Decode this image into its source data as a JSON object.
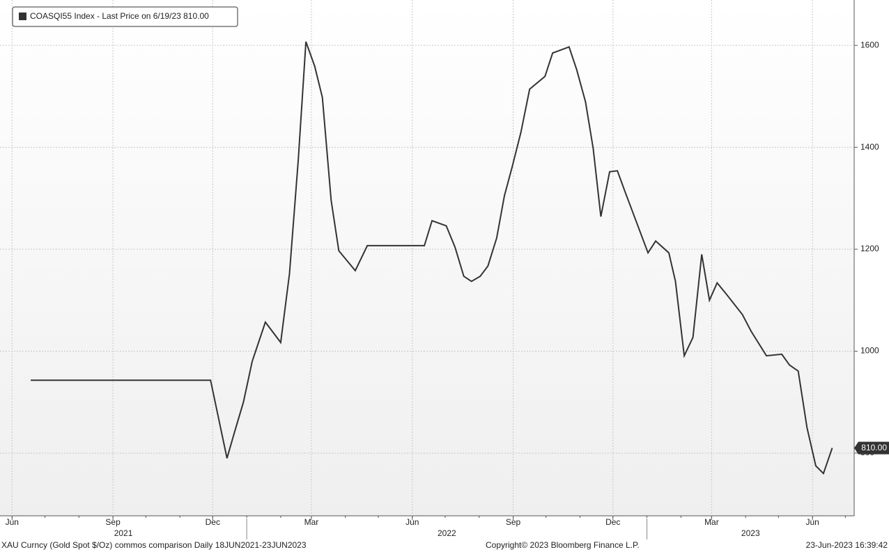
{
  "chart_data": {
    "type": "line",
    "legend_label": "COASQI55 Index - Last Price on 6/19/23 810.00",
    "x": [
      "2021-06-18",
      "2021-11-29",
      "2021-12-14",
      "2021-12-21",
      "2021-12-29",
      "2022-01-06",
      "2022-01-18",
      "2022-02-01",
      "2022-02-09",
      "2022-02-17",
      "2022-02-24",
      "2022-03-04",
      "2022-03-11",
      "2022-03-19",
      "2022-03-26",
      "2022-04-10",
      "2022-04-21",
      "2022-06-12",
      "2022-06-19",
      "2022-07-02",
      "2022-07-10",
      "2022-07-18",
      "2022-07-25",
      "2022-08-02",
      "2022-08-09",
      "2022-08-17",
      "2022-08-24",
      "2022-08-31",
      "2022-09-08",
      "2022-09-16",
      "2022-09-30",
      "2022-10-07",
      "2022-10-22",
      "2022-10-29",
      "2022-11-06",
      "2022-11-13",
      "2022-11-20",
      "2022-11-28",
      "2022-12-05",
      "2022-12-12",
      "2023-01-02",
      "2023-01-09",
      "2023-01-21",
      "2023-01-27",
      "2023-02-04",
      "2023-02-12",
      "2023-02-20",
      "2023-02-27",
      "2023-03-06",
      "2023-03-14",
      "2023-03-29",
      "2023-04-06",
      "2023-04-20",
      "2023-05-04",
      "2023-05-11",
      "2023-05-19",
      "2023-05-27",
      "2023-06-04",
      "2023-06-11",
      "2023-06-19"
    ],
    "series": [
      {
        "name": "COASQI55 Index",
        "color": "#333333",
        "values": [
          943,
          943,
          790,
          842,
          900,
          980,
          1057,
          1017,
          1152,
          1375,
          1607,
          1559,
          1498,
          1296,
          1197,
          1158,
          1207,
          1207,
          1256,
          1246,
          1204,
          1147,
          1137,
          1147,
          1167,
          1222,
          1305,
          1361,
          1429,
          1514,
          1539,
          1585,
          1597,
          1552,
          1489,
          1398,
          1264,
          1352,
          1354,
          1313,
          1193,
          1216,
          1193,
          1137,
          991,
          1027,
          1190,
          1100,
          1134,
          1113,
          1072,
          1039,
          991,
          994,
          973,
          961,
          850,
          775,
          760,
          810
        ]
      }
    ],
    "last_value_label": "810.00",
    "xlim": [
      "2021-05-21",
      "2023-07-09"
    ],
    "xticks": [
      {
        "value": "2021-06",
        "label": "Jun"
      },
      {
        "value": "2021-09",
        "label": "Sep"
      },
      {
        "value": "2021-12",
        "label": "Dec"
      },
      {
        "value": "2022-03",
        "label": "Mar"
      },
      {
        "value": "2022-06",
        "label": "Jun"
      },
      {
        "value": "2022-09",
        "label": "Sep"
      },
      {
        "value": "2022-12",
        "label": "Dec"
      },
      {
        "value": "2023-03",
        "label": "Mar"
      },
      {
        "value": "2023-06",
        "label": "Jun"
      }
    ],
    "years": [
      "2021",
      "2022",
      "2023"
    ],
    "ylim": [
      677,
      1689
    ],
    "yticks": [
      800,
      1000,
      1200,
      1400,
      1600
    ],
    "grid": true,
    "footer_left": "XAU Curncy (Gold Spot  $/Oz) commos comparison  Daily 18JUN2021-23JUN2023",
    "footer_center": "Copyright© 2023 Bloomberg Finance L.P.",
    "footer_right": "23-Jun-2023 16:39:42"
  }
}
